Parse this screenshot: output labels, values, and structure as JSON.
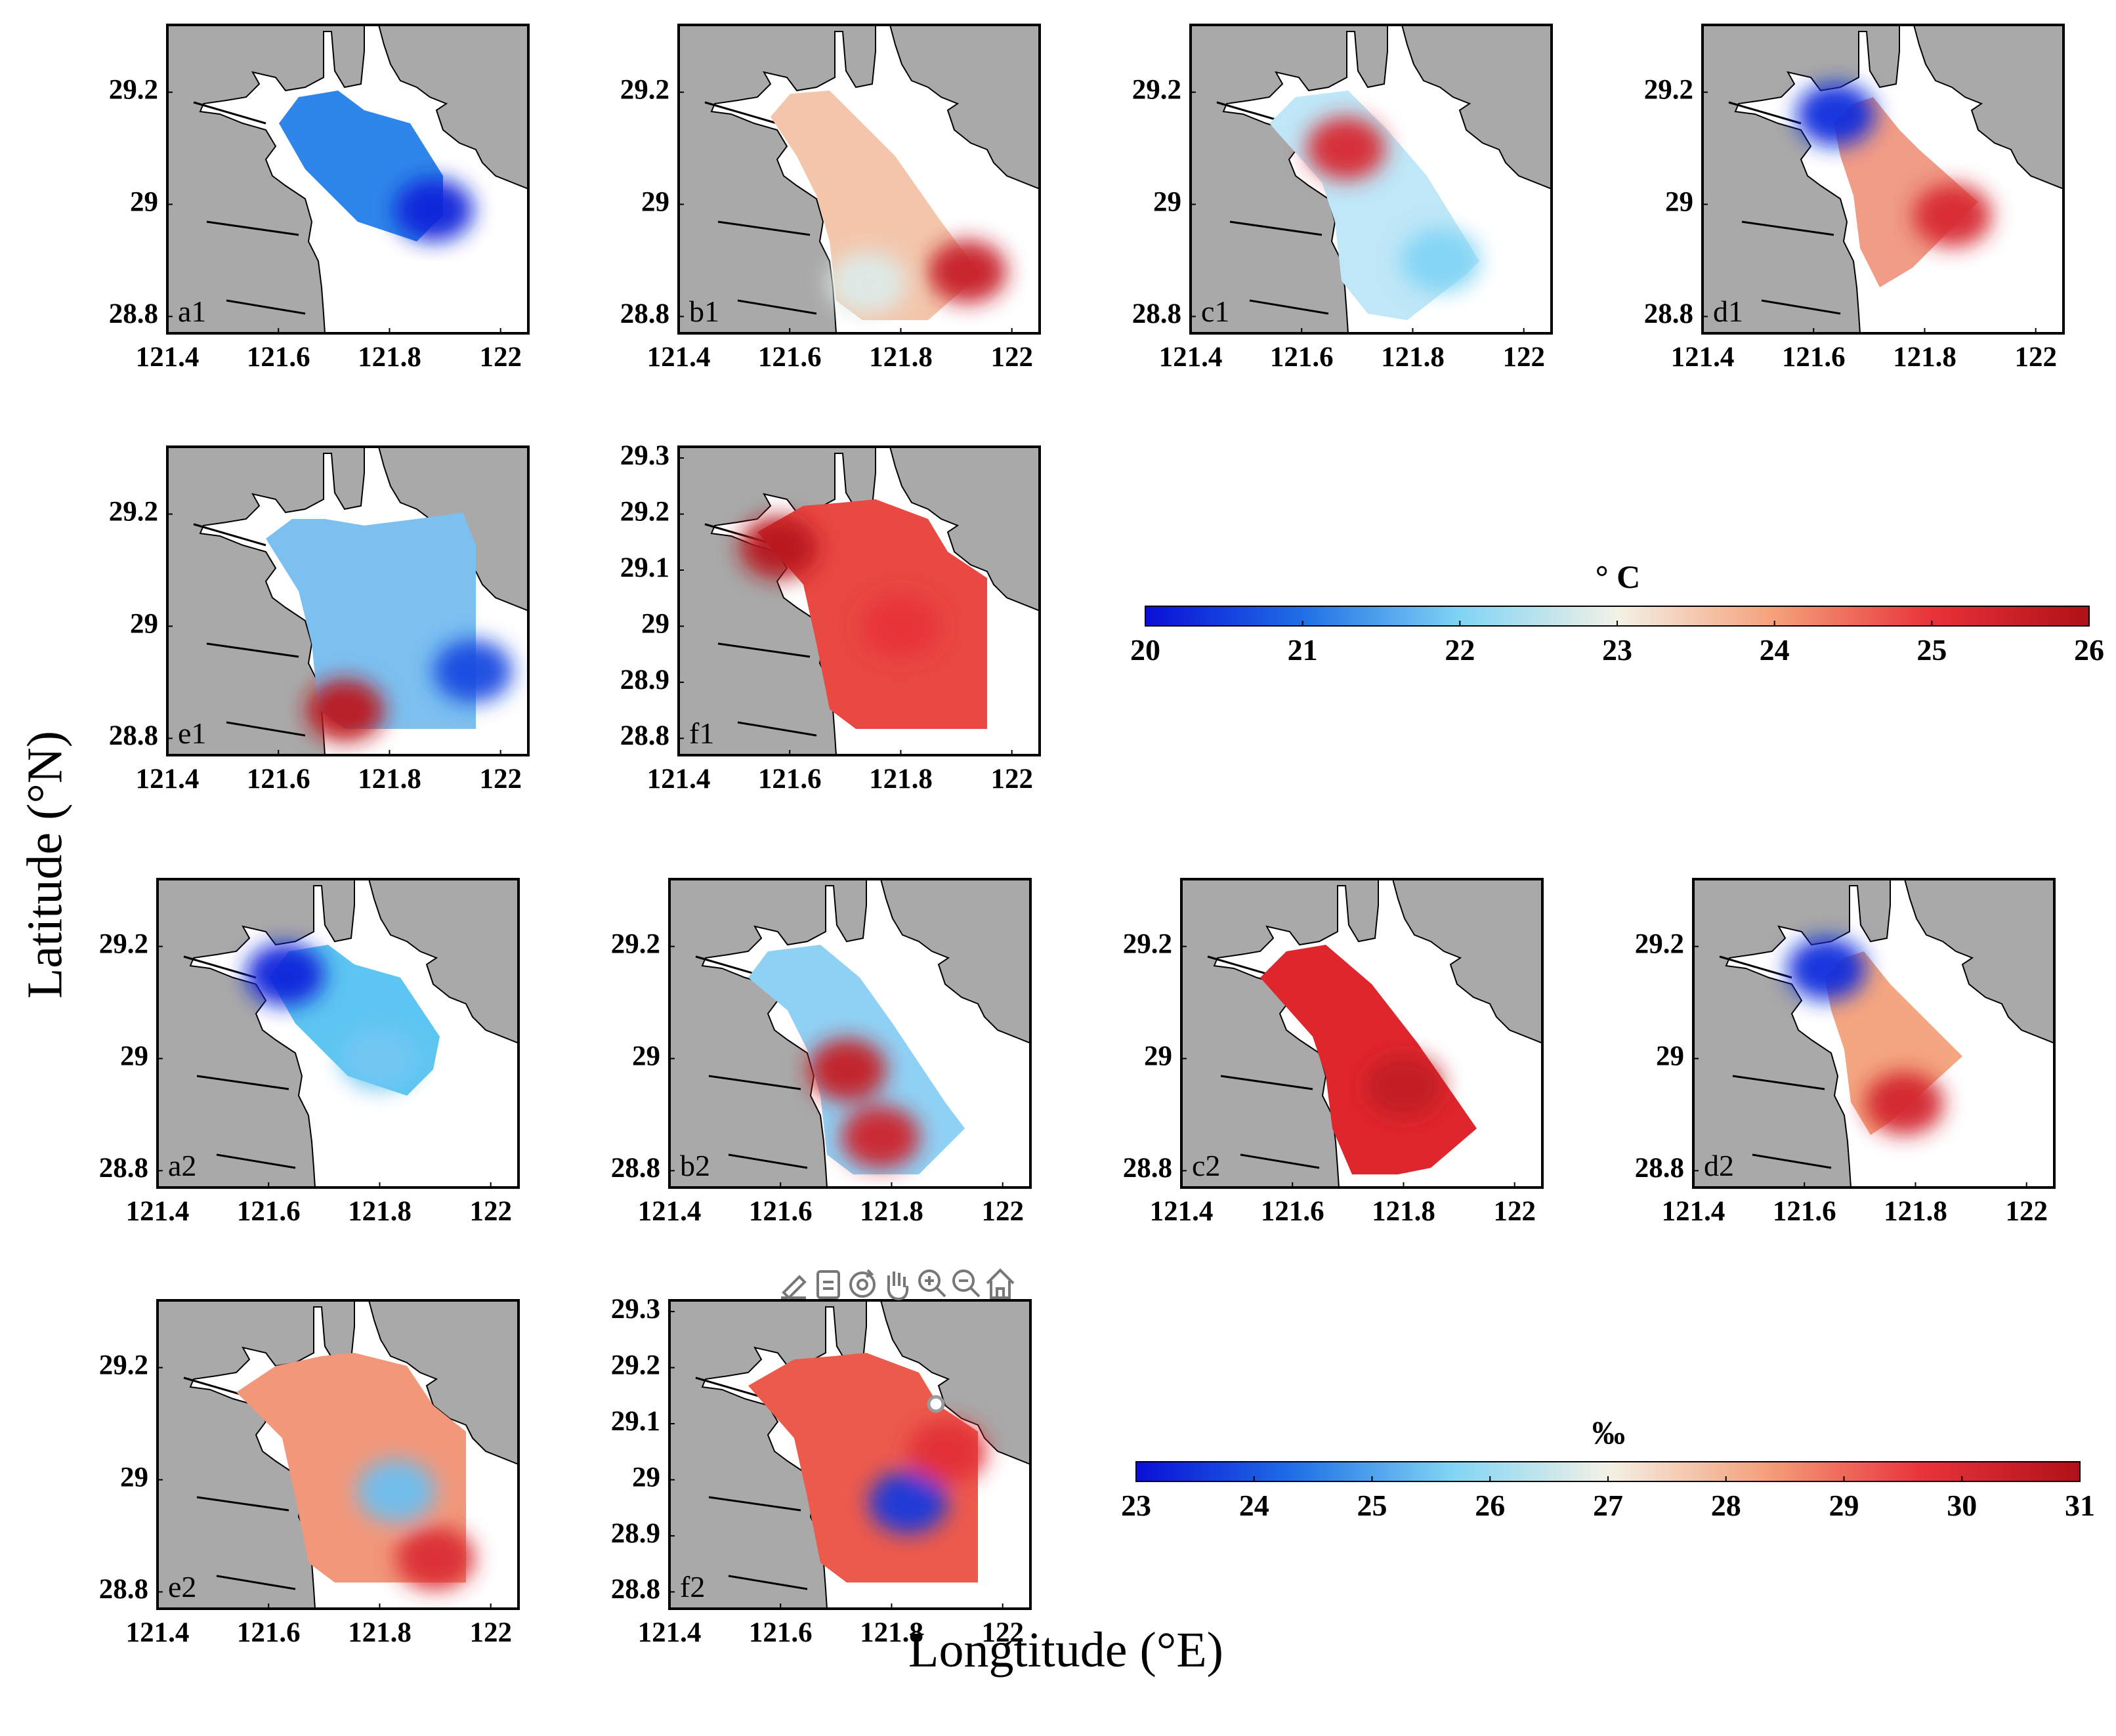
{
  "axis_labels": {
    "y": "Latitude (°N)",
    "x": "Longtitude (°E)"
  },
  "colorbars": {
    "temperature": {
      "unit": "° C",
      "min": 20,
      "max": 26,
      "ticks": [
        "20",
        "21",
        "22",
        "23",
        "24",
        "25",
        "26"
      ],
      "colors": [
        "#0a0fd6",
        "#1f6fe6",
        "#7fd4f4",
        "#f4f1e6",
        "#f5a07a",
        "#e8333a",
        "#b01018"
      ]
    },
    "salinity": {
      "unit": "‰",
      "min": 23,
      "max": 31,
      "ticks": [
        "23",
        "24",
        "25",
        "26",
        "27",
        "28",
        "29",
        "30",
        "31"
      ],
      "colors": [
        "#0a0fd6",
        "#1f6fe6",
        "#7fd4f4",
        "#f4f1e6",
        "#f5a07a",
        "#e8333a",
        "#b01018"
      ]
    }
  },
  "map": {
    "xlim": [
      121.4,
      122.05
    ],
    "ylim": [
      28.77,
      29.32
    ],
    "x_ticks": [
      "121.4",
      "121.6",
      "121.8",
      "122"
    ],
    "y_ticks_standard": [
      "29.2",
      "29",
      "28.8"
    ],
    "y_ticks_fine": [
      "29.3",
      "29.2",
      "29.1",
      "29",
      "28.9",
      "28.8"
    ],
    "land_color": "#a9a9a9",
    "water_color": "#ffffff"
  },
  "chart_data": {
    "type": "map-contour-panels",
    "panels": [
      {
        "id": "a1",
        "label": "a1",
        "variable": "temperature",
        "fill_color": "#2f86ea",
        "field": [
          {
            "lon": 121.88,
            "lat": 28.99,
            "value": 20.2
          }
        ]
      },
      {
        "id": "b1",
        "label": "b1",
        "variable": "temperature",
        "fill_color": "#f3c6ab",
        "field": [
          {
            "lon": 121.92,
            "lat": 28.88,
            "value": 25.6
          },
          {
            "lon": 121.74,
            "lat": 28.86,
            "value": 22.8
          }
        ]
      },
      {
        "id": "c1",
        "label": "c1",
        "variable": "temperature",
        "fill_color": "#bfe7f7",
        "field": [
          {
            "lon": 121.68,
            "lat": 29.1,
            "value": 25.3
          },
          {
            "lon": 121.85,
            "lat": 28.9,
            "value": 22.0
          }
        ]
      },
      {
        "id": "d1",
        "label": "d1",
        "variable": "temperature",
        "fill_color": "#f09c86",
        "field": [
          {
            "lon": 121.64,
            "lat": 29.16,
            "value": 20.3
          },
          {
            "lon": 121.85,
            "lat": 28.98,
            "value": 25.3
          }
        ]
      },
      {
        "id": "e1",
        "label": "e1",
        "variable": "temperature",
        "fill_color": "#7cc0f0",
        "field": [
          {
            "lon": 121.72,
            "lat": 28.85,
            "value": 25.8
          },
          {
            "lon": 121.95,
            "lat": 28.92,
            "value": 20.6
          }
        ]
      },
      {
        "id": "f1",
        "label": "f1",
        "variable": "temperature",
        "fill_color": "#e94843",
        "field": [
          {
            "lon": 121.58,
            "lat": 29.14,
            "value": 25.9
          },
          {
            "lon": 121.8,
            "lat": 29.0,
            "value": 25.0
          }
        ]
      },
      {
        "id": "a2",
        "label": "a2",
        "variable": "salinity",
        "fill_color": "#5cc5f1",
        "field": [
          {
            "lon": 121.63,
            "lat": 29.15,
            "value": 23.3
          },
          {
            "lon": 121.8,
            "lat": 29.0,
            "value": 25.5
          }
        ]
      },
      {
        "id": "b2",
        "label": "b2",
        "variable": "salinity",
        "fill_color": "#8fd1f5",
        "field": [
          {
            "lon": 121.72,
            "lat": 28.98,
            "value": 30.5
          },
          {
            "lon": 121.78,
            "lat": 28.86,
            "value": 30.3
          }
        ]
      },
      {
        "id": "c2",
        "label": "c2",
        "variable": "salinity",
        "fill_color": "#e0262d",
        "field": [
          {
            "lon": 121.8,
            "lat": 28.95,
            "value": 30.6
          }
        ]
      },
      {
        "id": "d2",
        "label": "d2",
        "variable": "salinity",
        "fill_color": "#f4a681",
        "field": [
          {
            "lon": 121.64,
            "lat": 29.16,
            "value": 23.4
          },
          {
            "lon": 121.78,
            "lat": 28.92,
            "value": 30.2
          }
        ]
      },
      {
        "id": "e2",
        "label": "e2",
        "variable": "salinity",
        "fill_color": "#f2977a",
        "field": [
          {
            "lon": 121.83,
            "lat": 28.98,
            "value": 25.4
          },
          {
            "lon": 121.9,
            "lat": 28.86,
            "value": 30.0
          }
        ]
      },
      {
        "id": "f2",
        "label": "f2",
        "variable": "salinity",
        "fill_color": "#ec5a4c",
        "field": [
          {
            "lon": 121.83,
            "lat": 28.96,
            "value": 23.6
          },
          {
            "lon": 121.9,
            "lat": 29.05,
            "value": 29.8
          }
        ]
      }
    ]
  },
  "toolbar": {
    "icons": [
      "brush-icon",
      "datatip-icon",
      "rotate-icon",
      "pan-icon",
      "zoom-in-icon",
      "zoom-out-icon",
      "home-icon"
    ]
  }
}
